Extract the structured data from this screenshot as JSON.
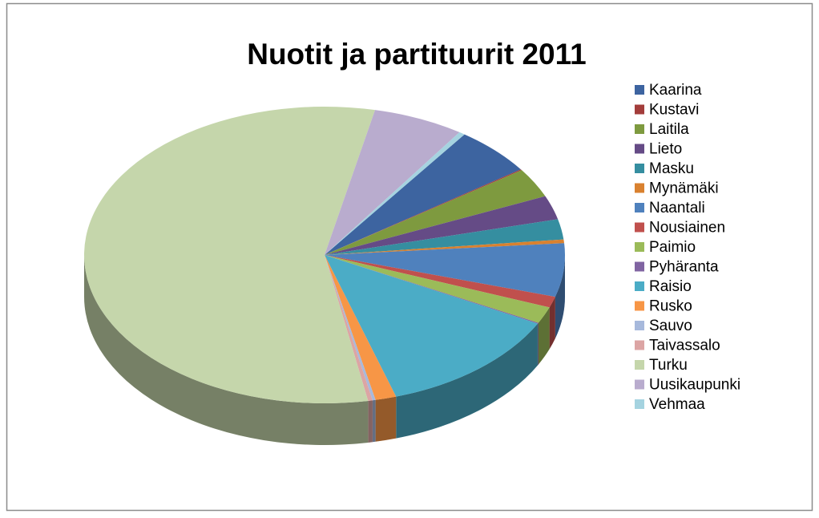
{
  "chart_data": {
    "type": "pie",
    "title": "Nuotit ja partituurit 2011",
    "categories": [
      "Kaarina",
      "Kustavi",
      "Laitila",
      "Lieto",
      "Masku",
      "Mynämäki",
      "Naantali",
      "Nousiainen",
      "Paimio",
      "Pyhäranta",
      "Raisio",
      "Rusko",
      "Sauvo",
      "Taivassalo",
      "Turku",
      "Uusikaupunki",
      "Vehmaa"
    ],
    "values": [
      5.3,
      0.1,
      3.2,
      2.6,
      2.2,
      0.4,
      5.8,
      1.2,
      1.8,
      0.1,
      12.5,
      1.4,
      0.2,
      0.3,
      56.1,
      6.1,
      0.4
    ],
    "colors": [
      "#3d64a0",
      "#a33d3b",
      "#7e9a3f",
      "#654b86",
      "#358ea0",
      "#d9812f",
      "#4f81bd",
      "#c0504d",
      "#9bbb59",
      "#8064a2",
      "#4bacc6",
      "#f79646",
      "#a7b9dc",
      "#dca5a4",
      "#c5d6ab",
      "#b9acce",
      "#a5d3e0"
    ],
    "legend": "right"
  }
}
